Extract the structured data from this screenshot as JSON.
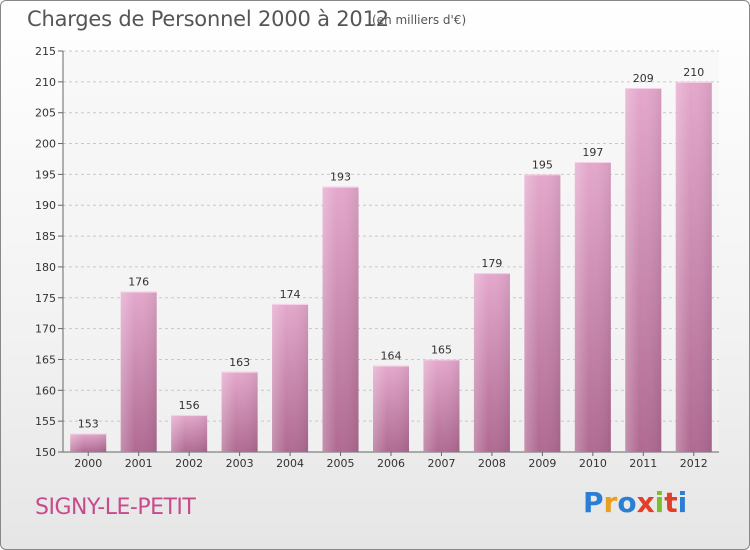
{
  "title": "Charges de Personnel 2000 à 2012",
  "subtitle": "(en milliers d'€)",
  "commune": "SIGNY-LE-PETIT",
  "logo": {
    "letters": [
      "P",
      "r",
      "o",
      "x",
      "i",
      "t",
      "i"
    ],
    "colors": [
      "#2a7fd4",
      "#e8a020",
      "#2a7fd4",
      "#e0402a",
      "#7cbf2a",
      "#e0402a",
      "#2a7fd4"
    ]
  },
  "colors": {
    "bar_light": "#e4a8cc",
    "bar_dark": "#b06a92",
    "commune_text": "#c84a8c"
  },
  "chart_data": {
    "type": "bar",
    "categories": [
      "2000",
      "2001",
      "2002",
      "2003",
      "2004",
      "2005",
      "2006",
      "2007",
      "2008",
      "2009",
      "2010",
      "2011",
      "2012"
    ],
    "values": [
      153,
      176,
      156,
      163,
      174,
      193,
      164,
      165,
      179,
      195,
      197,
      209,
      210
    ],
    "title": "Charges de Personnel 2000 à 2012",
    "subtitle": "(en milliers d'€)",
    "ylim": [
      150,
      215
    ],
    "yticks": [
      150,
      155,
      160,
      165,
      170,
      175,
      180,
      185,
      190,
      195,
      200,
      205,
      210,
      215
    ],
    "grid": true,
    "data_labels": true
  }
}
